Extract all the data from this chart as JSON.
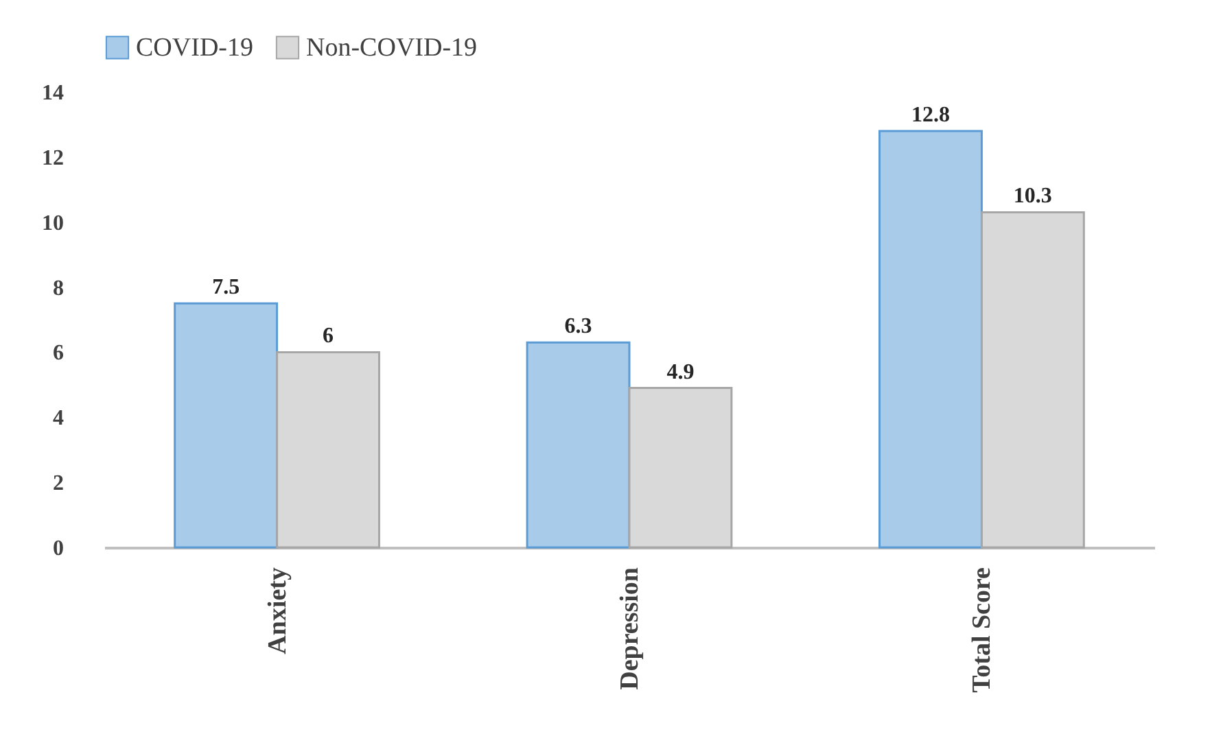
{
  "chart_data": {
    "type": "bar",
    "categories": [
      "Anxiety",
      "Depression",
      "Total Score"
    ],
    "series": [
      {
        "name": "COVID-19",
        "color": "#a9cbea",
        "values": [
          7.5,
          6.3,
          12.8
        ]
      },
      {
        "name": "Non-COVID-19",
        "color": "#d9d9d9",
        "values": [
          6,
          4.9,
          10.3
        ]
      }
    ],
    "ylim": [
      0,
      14
    ],
    "yticks": [
      0,
      2,
      4,
      6,
      8,
      10,
      12,
      14
    ],
    "grid": false,
    "legend": "top",
    "data_labels": true
  }
}
